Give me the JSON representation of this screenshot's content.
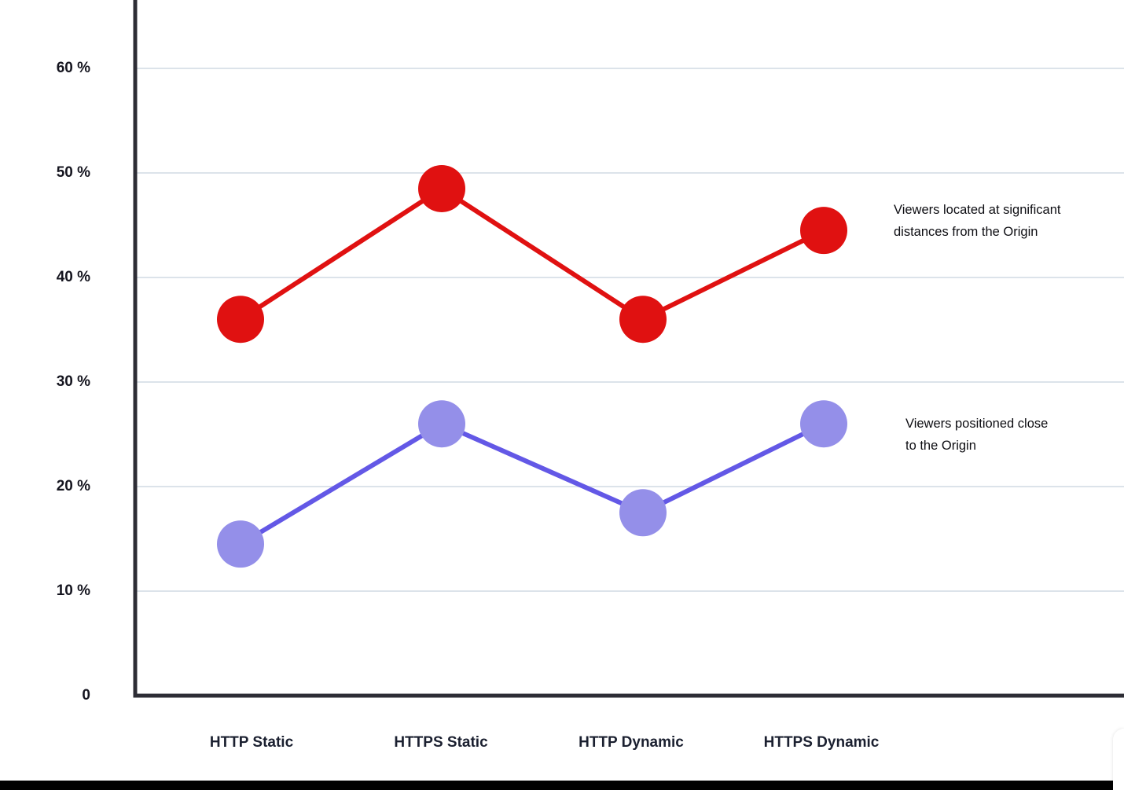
{
  "chart_data": {
    "type": "line",
    "title": "",
    "xlabel": "",
    "ylabel": "",
    "categories": [
      "HTTP Static",
      "HTTPS Static",
      "HTTP Dynamic",
      "HTTPS Dynamic"
    ],
    "series": [
      {
        "name": "Viewers located at significant distances from the Origin",
        "values": [
          36,
          48.5,
          36,
          44.5
        ],
        "line_color": "#e01111",
        "marker_color": "#e01111"
      },
      {
        "name": "Viewers positioned close to the Origin",
        "values": [
          14.5,
          26,
          17.5,
          26
        ],
        "line_color": "#6358e6",
        "marker_color": "#948fe9"
      }
    ],
    "ylim": [
      0,
      65
    ],
    "yticks": [
      {
        "value": 60,
        "label": "60 %"
      },
      {
        "value": 50,
        "label": "50 %"
      },
      {
        "value": 40,
        "label": "40 %"
      },
      {
        "value": 30,
        "label": "30 %"
      },
      {
        "value": 20,
        "label": "20 %"
      },
      {
        "value": 10,
        "label": "10 %"
      },
      {
        "value": 0,
        "label": "0"
      }
    ],
    "grid": true,
    "grid_color": "#dce3ea",
    "axis_color": "#2d2d35",
    "legend_position": "right-annotations"
  },
  "annotations": [
    {
      "line1": "Viewers located at significant",
      "line2": "distances from the Origin"
    },
    {
      "line1": "Viewers positioned close",
      "line2": "to the Origin"
    }
  ]
}
